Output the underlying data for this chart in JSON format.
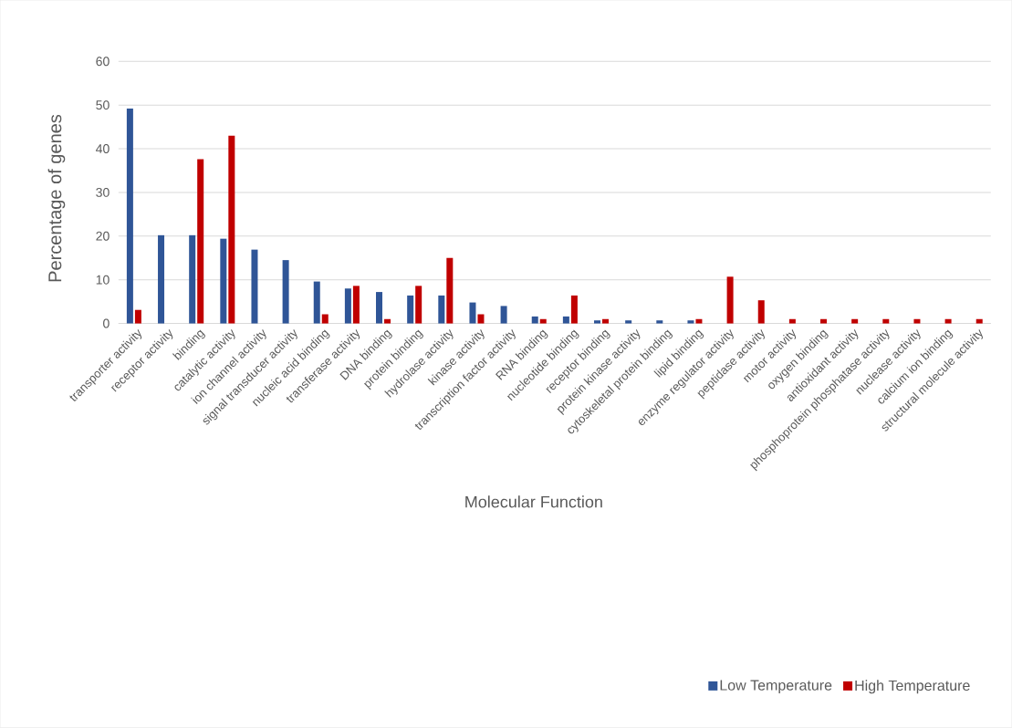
{
  "chart_data": {
    "type": "bar",
    "xlabel": "Molecular Function",
    "ylabel": "Percentage of genes",
    "categories": [
      "transporter activity",
      "receptor activity",
      "binding",
      "catalytic activity",
      "ion channel activity",
      "signal transducer activity",
      "nucleic acid binding",
      "transferase activity",
      "DNA binding",
      "protein binding",
      "hydrolase activity",
      "kinase activity",
      "transcription factor activity",
      "RNA binding",
      "nucleotide binding",
      "receptor binding",
      "protein kinase activity",
      "cytoskeletal protein binding",
      "lipid binding",
      "enzyme regulator activity",
      "peptidase activity",
      "motor activity",
      "oxygen binding",
      "antioxidant activity",
      "phosphoprotein phosphatase activity",
      "nuclease activity",
      "calcium ion binding",
      "structural molecule activity"
    ],
    "series": [
      {
        "name": "Low Temperature",
        "color": "#2f5597",
        "values": [
          49.2,
          20.2,
          20.2,
          19.4,
          16.9,
          14.5,
          9.6,
          8.0,
          7.2,
          6.4,
          6.4,
          4.8,
          4.0,
          1.6,
          1.6,
          0.7,
          0.7,
          0.7,
          0.7,
          0,
          0,
          0,
          0,
          0,
          0,
          0,
          0,
          0
        ]
      },
      {
        "name": "High Temperature",
        "color": "#c00000",
        "values": [
          3.1,
          0,
          37.6,
          43.0,
          0,
          0,
          2.1,
          8.6,
          1.0,
          8.6,
          15.0,
          2.1,
          0,
          1.0,
          6.4,
          1.0,
          0,
          0,
          1.0,
          10.7,
          5.3,
          1.0,
          1.0,
          1.0,
          1.0,
          1.0,
          1.0,
          1.0
        ]
      }
    ],
    "ylim": [
      0,
      60
    ],
    "yticks": [
      0,
      10,
      20,
      30,
      40,
      50,
      60
    ],
    "grid": "y",
    "legend": "bottom right"
  }
}
